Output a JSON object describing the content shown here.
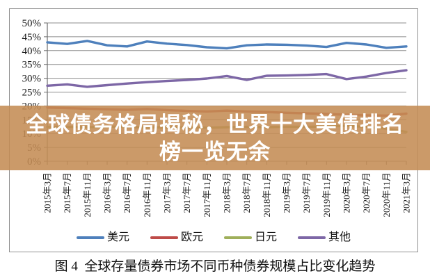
{
  "banner": {
    "line1": "全球债务格局揭秘，世界十大美债排名",
    "line2": "榜一览无余",
    "bg_color": "#C48C54",
    "text_color": "#FFFFFF"
  },
  "caption": "图 4  全球存量债券市场不同币种债券规模占比变化趋势",
  "chart_data": {
    "type": "line",
    "title": "",
    "xlabel": "",
    "ylabel": "",
    "grid": true,
    "legend_position": "bottom",
    "ylim": [
      0,
      50
    ],
    "ytick_step": 5,
    "ytick_suffix": "%",
    "categories": [
      "2015年3月",
      "2015年7月",
      "2015年11月",
      "2016年3月",
      "2016年7月",
      "2016年11月",
      "2017年3月",
      "2017年7月",
      "2017年11月",
      "2018年3月",
      "2018年7月",
      "2018年11月",
      "2019年3月",
      "2019年7月",
      "2019年11月",
      "2020年3月",
      "2020年7月",
      "2020年11月",
      "2021年3月"
    ],
    "series": [
      {
        "name": "美元",
        "color": "#4E80BC",
        "values": [
          43.0,
          42.4,
          43.5,
          41.9,
          41.5,
          43.3,
          42.5,
          42.0,
          41.2,
          40.8,
          41.9,
          42.2,
          42.1,
          41.8,
          41.3,
          42.8,
          42.2,
          41.0,
          41.5
        ]
      },
      {
        "name": "欧元",
        "color": "#BE4B48",
        "values": [
          19.4,
          19.2,
          19.0,
          18.8,
          18.6,
          18.9,
          18.5,
          18.2,
          18.0,
          18.3,
          18.0,
          17.8,
          17.5,
          17.3,
          17.1,
          16.8,
          16.6,
          16.5,
          17.2
        ]
      },
      {
        "name": "日元",
        "color": "#9FAF5A",
        "values": [
          12.4,
          12.4,
          12.3,
          12.5,
          12.4,
          12.2,
          12.3,
          12.2,
          12.1,
          12.3,
          12.4,
          12.3,
          12.5,
          12.4,
          12.6,
          12.8,
          12.4,
          11.8,
          10.6
        ]
      },
      {
        "name": "其他",
        "color": "#7D67A6",
        "values": [
          27.3,
          27.8,
          26.9,
          27.5,
          28.1,
          28.6,
          29.0,
          29.4,
          29.9,
          30.8,
          29.4,
          30.9,
          31.0,
          31.2,
          31.5,
          29.7,
          30.6,
          31.9,
          32.9
        ]
      }
    ]
  }
}
